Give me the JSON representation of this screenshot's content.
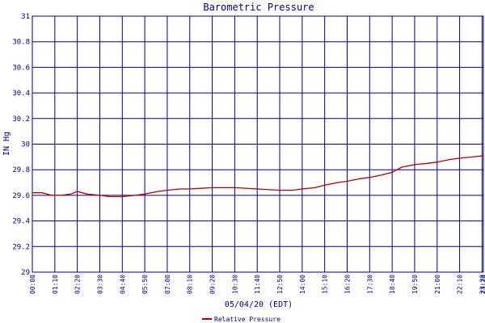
{
  "chart_data": {
    "type": "line",
    "title": "Barometric Pressure",
    "xlabel": "05/04/20 (EDT)",
    "ylabel": "IN Hg",
    "ylim": [
      29,
      31
    ],
    "y_ticks": [
      "31",
      "30.8",
      "30.6",
      "30.4",
      "30.2",
      "30",
      "29.8",
      "29.6",
      "29.4",
      "29.2",
      "29"
    ],
    "x_ticks": [
      "00:00",
      "01:10",
      "02:20",
      "03:30",
      "04:40",
      "05:50",
      "07:00",
      "08:10",
      "09:20",
      "10:30",
      "11:40",
      "12:50",
      "14:00",
      "15:10",
      "16:20",
      "17:30",
      "18:40",
      "19:50",
      "21:00",
      "22:10",
      "23:20",
      "23:24"
    ],
    "grid": true,
    "legend_position": "bottom",
    "colors": {
      "series": "#b00000",
      "grid": "#000080",
      "text": "#000080"
    },
    "series": [
      {
        "name": "Relative Pressure",
        "x": [
          "00:00",
          "00:30",
          "01:00",
          "01:30",
          "02:00",
          "02:20",
          "02:50",
          "03:30",
          "04:00",
          "04:40",
          "05:20",
          "05:50",
          "06:30",
          "07:00",
          "07:40",
          "08:10",
          "09:20",
          "10:30",
          "11:40",
          "12:50",
          "13:30",
          "14:00",
          "14:40",
          "15:10",
          "15:50",
          "16:20",
          "17:00",
          "17:30",
          "18:10",
          "18:40",
          "19:10",
          "19:50",
          "20:30",
          "21:00",
          "21:40",
          "22:10",
          "22:50",
          "23:24"
        ],
        "values": [
          29.62,
          29.62,
          29.6,
          29.6,
          29.61,
          29.63,
          29.61,
          29.6,
          29.59,
          29.59,
          29.6,
          29.61,
          29.63,
          29.64,
          29.65,
          29.65,
          29.66,
          29.66,
          29.65,
          29.64,
          29.64,
          29.65,
          29.66,
          29.68,
          29.7,
          29.71,
          29.73,
          29.74,
          29.76,
          29.78,
          29.82,
          29.84,
          29.85,
          29.86,
          29.88,
          29.89,
          29.9,
          29.91
        ]
      }
    ]
  }
}
